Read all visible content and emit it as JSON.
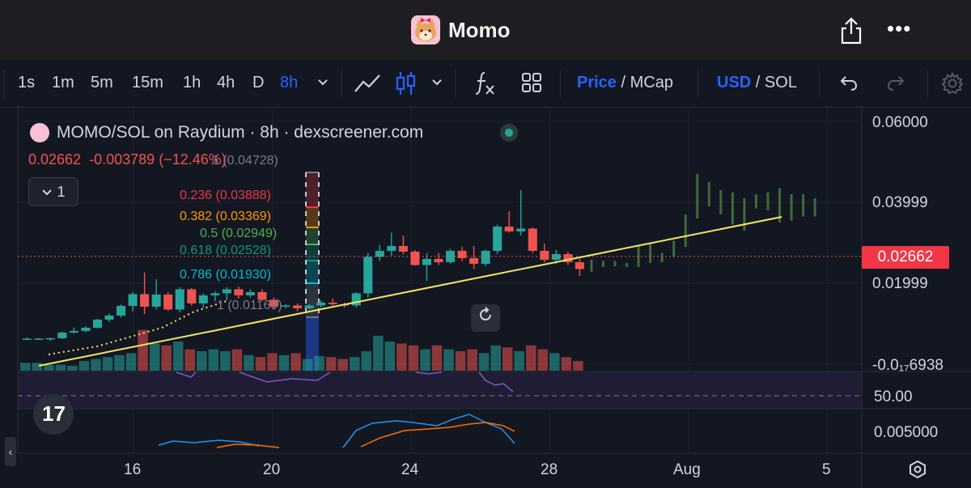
{
  "app": {
    "title": "Momo"
  },
  "toolbar": {
    "intervals": [
      "1s",
      "1m",
      "5m",
      "15m",
      "1h",
      "4h",
      "D",
      "8h"
    ],
    "active_interval": "8h",
    "price_label": "Price",
    "mcap_label": "MCap",
    "currency_usd": "USD",
    "currency_sol": "SOL",
    "separator": "/"
  },
  "legend": {
    "title": "MOMO/SOL on Raydium · 8h · dexscreener.com",
    "price": "0.02662",
    "change": "-0.003789",
    "change_pct": "(−12.46%)",
    "collapse_count": "1"
  },
  "fib_levels": [
    {
      "label": "1 (0.04728)",
      "color": "#787b86"
    },
    {
      "label": "0.236 (0.03888)",
      "color": "#f23645"
    },
    {
      "label": "0.382 (0.03369)",
      "color": "#ff9800"
    },
    {
      "label": "0.5 (0.02949)",
      "color": "#4caf50"
    },
    {
      "label": "0.618 (0.02528)",
      "color": "#089981"
    },
    {
      "label": "0.786 (0.01930)",
      "color": "#00bcd4"
    },
    {
      "label": "1 (0.01169)",
      "color": "#787b86"
    }
  ],
  "price_axis": {
    "labels": [
      "0.06000",
      "0.03999",
      "0.01999",
      "-0.0₁₇6938",
      "50.00",
      "0.005000"
    ],
    "current": "0.02662"
  },
  "time_axis": [
    "16",
    "20",
    "24",
    "28",
    "Aug",
    "5"
  ],
  "colors": {
    "up": "#26a69a",
    "down": "#ef5350",
    "trend": "#f5e663",
    "rsi": "#7e57c2",
    "macd": "#2196f3",
    "signal": "#ff6d00"
  },
  "chart_data": {
    "type": "candlestick",
    "pair": "MOMO/SOL",
    "interval": "8h",
    "y_ticks": [
      0.06,
      0.03999,
      0.01999
    ],
    "candles": [
      {
        "o": 0.0063,
        "h": 0.0066,
        "l": 0.0059,
        "c": 0.0063
      },
      {
        "o": 0.0063,
        "h": 0.0065,
        "l": 0.006,
        "c": 0.0063
      },
      {
        "o": 0.0062,
        "h": 0.0066,
        "l": 0.0058,
        "c": 0.0064
      },
      {
        "o": 0.0064,
        "h": 0.008,
        "l": 0.0062,
        "c": 0.0078
      },
      {
        "o": 0.0078,
        "h": 0.009,
        "l": 0.0075,
        "c": 0.0082
      },
      {
        "o": 0.0082,
        "h": 0.0094,
        "l": 0.0079,
        "c": 0.009
      },
      {
        "o": 0.009,
        "h": 0.0112,
        "l": 0.0088,
        "c": 0.011
      },
      {
        "o": 0.011,
        "h": 0.0125,
        "l": 0.0104,
        "c": 0.012
      },
      {
        "o": 0.012,
        "h": 0.0147,
        "l": 0.0115,
        "c": 0.0144
      },
      {
        "o": 0.0144,
        "h": 0.0178,
        "l": 0.013,
        "c": 0.0173
      },
      {
        "o": 0.0173,
        "h": 0.0227,
        "l": 0.0124,
        "c": 0.0142
      },
      {
        "o": 0.0142,
        "h": 0.021,
        "l": 0.0135,
        "c": 0.0172
      },
      {
        "o": 0.0172,
        "h": 0.0178,
        "l": 0.0132,
        "c": 0.0135
      },
      {
        "o": 0.0135,
        "h": 0.019,
        "l": 0.0128,
        "c": 0.0185
      },
      {
        "o": 0.0185,
        "h": 0.0188,
        "l": 0.0145,
        "c": 0.015
      },
      {
        "o": 0.015,
        "h": 0.0175,
        "l": 0.014,
        "c": 0.017
      },
      {
        "o": 0.017,
        "h": 0.018,
        "l": 0.0155,
        "c": 0.0175
      },
      {
        "o": 0.0175,
        "h": 0.019,
        "l": 0.0158,
        "c": 0.0185
      },
      {
        "o": 0.0185,
        "h": 0.0192,
        "l": 0.0162,
        "c": 0.017
      },
      {
        "o": 0.017,
        "h": 0.0185,
        "l": 0.0165,
        "c": 0.0178
      },
      {
        "o": 0.0178,
        "h": 0.0185,
        "l": 0.0155,
        "c": 0.0159
      },
      {
        "o": 0.0159,
        "h": 0.0165,
        "l": 0.0135,
        "c": 0.0142
      },
      {
        "o": 0.0142,
        "h": 0.0148,
        "l": 0.0138,
        "c": 0.0145
      },
      {
        "o": 0.0145,
        "h": 0.015,
        "l": 0.013,
        "c": 0.0138
      },
      {
        "o": 0.0138,
        "h": 0.0148,
        "l": 0.0135,
        "c": 0.0145
      },
      {
        "o": 0.0145,
        "h": 0.0158,
        "l": 0.014,
        "c": 0.0152
      },
      {
        "o": 0.0152,
        "h": 0.0162,
        "l": 0.0145,
        "c": 0.0148
      },
      {
        "o": 0.0148,
        "h": 0.0152,
        "l": 0.014,
        "c": 0.0145
      },
      {
        "o": 0.0145,
        "h": 0.0178,
        "l": 0.014,
        "c": 0.0175
      },
      {
        "o": 0.0175,
        "h": 0.0275,
        "l": 0.0165,
        "c": 0.0265
      },
      {
        "o": 0.0265,
        "h": 0.0295,
        "l": 0.0255,
        "c": 0.028
      },
      {
        "o": 0.028,
        "h": 0.0325,
        "l": 0.0268,
        "c": 0.0292
      },
      {
        "o": 0.0292,
        "h": 0.0318,
        "l": 0.0272,
        "c": 0.0278
      },
      {
        "o": 0.0278,
        "h": 0.0282,
        "l": 0.0243,
        "c": 0.0245
      },
      {
        "o": 0.0245,
        "h": 0.0275,
        "l": 0.0205,
        "c": 0.026
      },
      {
        "o": 0.026,
        "h": 0.0275,
        "l": 0.0245,
        "c": 0.0252
      },
      {
        "o": 0.0252,
        "h": 0.0285,
        "l": 0.0248,
        "c": 0.028
      },
      {
        "o": 0.028,
        "h": 0.029,
        "l": 0.0255,
        "c": 0.0262
      },
      {
        "o": 0.0262,
        "h": 0.0292,
        "l": 0.0235,
        "c": 0.0248
      },
      {
        "o": 0.0248,
        "h": 0.0283,
        "l": 0.0242,
        "c": 0.028
      },
      {
        "o": 0.028,
        "h": 0.0345,
        "l": 0.0272,
        "c": 0.034
      },
      {
        "o": 0.034,
        "h": 0.0378,
        "l": 0.0325,
        "c": 0.0328
      },
      {
        "o": 0.0328,
        "h": 0.043,
        "l": 0.0318,
        "c": 0.0335
      },
      {
        "o": 0.0335,
        "h": 0.0338,
        "l": 0.0275,
        "c": 0.028
      },
      {
        "o": 0.028,
        "h": 0.0298,
        "l": 0.0252,
        "c": 0.0258
      },
      {
        "o": 0.0258,
        "h": 0.0282,
        "l": 0.0248,
        "c": 0.0272
      },
      {
        "o": 0.0272,
        "h": 0.0278,
        "l": 0.0245,
        "c": 0.0252
      },
      {
        "o": 0.0252,
        "h": 0.026,
        "l": 0.0218,
        "c": 0.0235
      }
    ],
    "ghost_candles": [
      {
        "o": 0.0235,
        "h": 0.0258,
        "l": 0.0228,
        "c": 0.025
      },
      {
        "o": 0.025,
        "h": 0.0255,
        "l": 0.024,
        "c": 0.0248
      },
      {
        "o": 0.0248,
        "h": 0.0255,
        "l": 0.0242,
        "c": 0.0245
      },
      {
        "o": 0.0245,
        "h": 0.025,
        "l": 0.024,
        "c": 0.0246
      },
      {
        "o": 0.0246,
        "h": 0.0292,
        "l": 0.024,
        "c": 0.029
      },
      {
        "o": 0.029,
        "h": 0.0298,
        "l": 0.025,
        "c": 0.0258
      },
      {
        "o": 0.0258,
        "h": 0.0275,
        "l": 0.0252,
        "c": 0.027
      },
      {
        "o": 0.027,
        "h": 0.0305,
        "l": 0.0265,
        "c": 0.03
      },
      {
        "o": 0.03,
        "h": 0.037,
        "l": 0.029,
        "c": 0.0365
      },
      {
        "o": 0.0365,
        "h": 0.047,
        "l": 0.036,
        "c": 0.044
      },
      {
        "o": 0.044,
        "h": 0.045,
        "l": 0.039,
        "c": 0.04
      },
      {
        "o": 0.04,
        "h": 0.043,
        "l": 0.037,
        "c": 0.038
      },
      {
        "o": 0.038,
        "h": 0.0425,
        "l": 0.0345,
        "c": 0.035
      },
      {
        "o": 0.035,
        "h": 0.041,
        "l": 0.033,
        "c": 0.0405
      },
      {
        "o": 0.0405,
        "h": 0.042,
        "l": 0.0385,
        "c": 0.039
      },
      {
        "o": 0.039,
        "h": 0.0425,
        "l": 0.038,
        "c": 0.041
      },
      {
        "o": 0.041,
        "h": 0.0435,
        "l": 0.035,
        "c": 0.036
      },
      {
        "o": 0.036,
        "h": 0.042,
        "l": 0.0355,
        "c": 0.0415
      },
      {
        "o": 0.0415,
        "h": 0.042,
        "l": 0.0365,
        "c": 0.037
      },
      {
        "o": 0.037,
        "h": 0.041,
        "l": 0.0365,
        "c": 0.0405
      }
    ],
    "volumes": [
      8,
      8,
      6,
      6,
      5,
      10,
      12,
      14,
      16,
      18,
      42,
      28,
      26,
      30,
      22,
      20,
      22,
      20,
      22,
      16,
      14,
      18,
      16,
      18,
      12,
      15,
      14,
      12,
      14,
      20,
      36,
      30,
      28,
      26,
      22,
      26,
      22,
      20,
      22,
      18,
      26,
      24,
      20,
      26,
      22,
      18,
      14,
      10
    ],
    "rsi_ref": 50,
    "macd_ref": 0.005
  }
}
